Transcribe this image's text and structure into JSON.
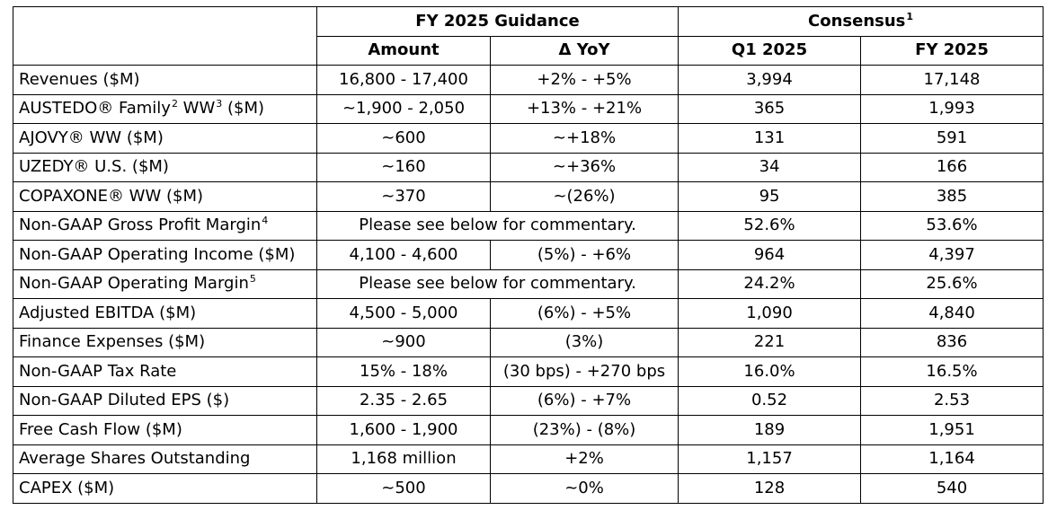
{
  "header": {
    "group_guidance": "FY 2025 Guidance",
    "group_consensus": "Consensus",
    "group_consensus_sup": "1",
    "col_amount": "Amount",
    "col_yoy": "Δ YoY",
    "col_q1": "Q1 2025",
    "col_fy": "FY 2025"
  },
  "rows": [
    {
      "label": "Revenues ($M)",
      "amount": "16,800 - 17,400",
      "yoy": "+2% - +5%",
      "q1": "3,994",
      "fy": "17,148"
    },
    {
      "label_a": "AUSTEDO® Family",
      "sup_a": "2",
      "label_b": " WW",
      "sup_b": "3",
      "label_c": " ($M)",
      "amount": "~1,900 - 2,050",
      "yoy": "+13% - +21%",
      "q1": "365",
      "fy": "1,993"
    },
    {
      "label": "AJOVY® WW ($M)",
      "amount": "~600",
      "yoy": "~+18%",
      "q1": "131",
      "fy": "591"
    },
    {
      "label": "UZEDY® U.S. ($M)",
      "amount": "~160",
      "yoy": "~+36%",
      "q1": "34",
      "fy": "166"
    },
    {
      "label": "COPAXONE® WW ($M)",
      "amount": "~370",
      "yoy": "~(26%)",
      "q1": "95",
      "fy": "385"
    },
    {
      "label": "Non-GAAP Gross Profit Margin",
      "sup": "4",
      "commentary": "Please see below for commentary.",
      "q1": "52.6%",
      "fy": "53.6%"
    },
    {
      "label": "Non-GAAP Operating Income ($M)",
      "amount": "4,100 - 4,600",
      "yoy": "(5%) - +6%",
      "q1": "964",
      "fy": "4,397"
    },
    {
      "label": "Non-GAAP Operating Margin",
      "sup": "5",
      "commentary": "Please see below for commentary.",
      "q1": "24.2%",
      "fy": "25.6%"
    },
    {
      "label": "Adjusted EBITDA ($M)",
      "amount": "4,500 - 5,000",
      "yoy": "(6%) - +5%",
      "q1": "1,090",
      "fy": "4,840"
    },
    {
      "label": "Finance Expenses ($M)",
      "amount": "~900",
      "yoy": "(3%)",
      "q1": "221",
      "fy": "836"
    },
    {
      "label": "Non-GAAP Tax Rate",
      "amount": "15% - 18%",
      "yoy": "(30 bps) - +270 bps",
      "q1": "16.0%",
      "fy": "16.5%"
    },
    {
      "label": "Non-GAAP Diluted EPS ($)",
      "amount": "2.35 - 2.65",
      "yoy": "(6%) - +7%",
      "q1": "0.52",
      "fy": "2.53"
    },
    {
      "label": "Free Cash Flow ($M)",
      "amount": "1,600 - 1,900",
      "yoy": "(23%) - (8%)",
      "q1": "189",
      "fy": "1,951"
    },
    {
      "label": "Average Shares Outstanding",
      "amount": "1,168 million",
      "yoy": "+2%",
      "q1": "1,157",
      "fy": "1,164"
    },
    {
      "label": "CAPEX ($M)",
      "amount": "~500",
      "yoy": "~0%",
      "q1": "128",
      "fy": "540"
    }
  ]
}
